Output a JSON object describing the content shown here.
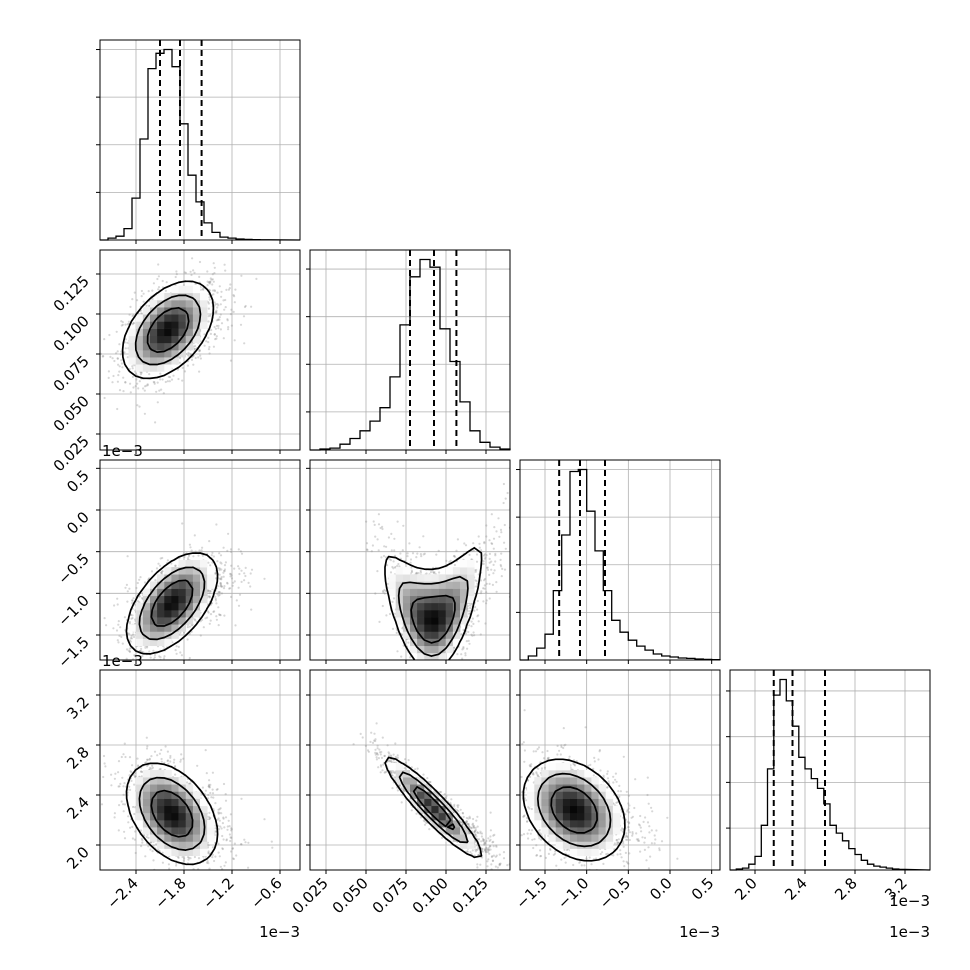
{
  "chart_data": {
    "type": "corner",
    "parameters": [
      {
        "id": "p0",
        "range": [
          -2.85,
          -0.35
        ],
        "ticks": [
          -2.4,
          -1.8,
          -1.2,
          -0.6
        ],
        "tick_labels": [
          "−2.4",
          "−1.8",
          "−1.2",
          "−0.6"
        ],
        "offset_label": "1e−3",
        "quantiles": [
          -2.1,
          -1.85,
          -1.58
        ],
        "hist_edges": [
          -2.85,
          -2.75,
          -2.65,
          -2.55,
          -2.45,
          -2.35,
          -2.25,
          -2.15,
          -2.05,
          -1.95,
          -1.85,
          -1.75,
          -1.65,
          -1.55,
          -1.45,
          -1.35,
          -1.25,
          -1.15,
          -1.05,
          -0.95,
          -0.85,
          -0.75
        ],
        "hist_counts": [
          0.0,
          0.01,
          0.02,
          0.06,
          0.22,
          0.53,
          0.9,
          0.98,
          1.0,
          0.91,
          0.61,
          0.34,
          0.2,
          0.09,
          0.04,
          0.015,
          0.01,
          0.005,
          0.003,
          0.002,
          0.001
        ],
        "hist_yticks": [
          0.25,
          0.5,
          0.75,
          1.0
        ]
      },
      {
        "id": "p1",
        "range": [
          0.015,
          0.14
        ],
        "ticks": [
          0.025,
          0.05,
          0.075,
          0.1,
          0.125
        ],
        "tick_labels": [
          "0.025",
          "0.050",
          "0.075",
          "0.100",
          "0.125"
        ],
        "offset_label": "",
        "quantiles": [
          0.0775,
          0.0925,
          0.1065
        ],
        "hist_edges": [
          0.015,
          0.02125,
          0.0275,
          0.03375,
          0.04,
          0.04625,
          0.0525,
          0.05875,
          0.065,
          0.07125,
          0.0775,
          0.08375,
          0.09,
          0.09625,
          0.1025,
          0.10875,
          0.115,
          0.12125,
          0.1275,
          0.13375,
          0.14
        ],
        "hist_counts": [
          0.0,
          0.005,
          0.01,
          0.03,
          0.06,
          0.1,
          0.15,
          0.22,
          0.38,
          0.65,
          0.9,
          0.99,
          0.95,
          0.63,
          0.46,
          0.25,
          0.1,
          0.04,
          0.015,
          0.005
        ],
        "hist_yticks": [
          0.2,
          0.45,
          0.7,
          0.95
        ]
      },
      {
        "id": "p2",
        "range": [
          -1.8,
          0.6
        ],
        "ticks": [
          -1.5,
          -1.0,
          -0.5,
          0.0,
          0.5
        ],
        "tick_labels": [
          "−1.5",
          "−1.0",
          "−0.5",
          "0.0",
          "0.5"
        ],
        "offset_label": "1e−3",
        "quantiles": [
          -1.33,
          -1.08,
          -0.78
        ],
        "hist_edges": [
          -1.8,
          -1.7,
          -1.6,
          -1.5,
          -1.4,
          -1.3,
          -1.2,
          -1.1,
          -1.0,
          -0.9,
          -0.8,
          -0.7,
          -0.6,
          -0.5,
          -0.4,
          -0.3,
          -0.2,
          -0.1,
          0.0,
          0.1,
          0.2,
          0.3,
          0.4,
          0.5,
          0.6
        ],
        "hist_counts": [
          0.0,
          0.02,
          0.06,
          0.13,
          0.35,
          0.63,
          0.95,
          0.96,
          0.75,
          0.55,
          0.35,
          0.2,
          0.14,
          0.1,
          0.07,
          0.05,
          0.03,
          0.02,
          0.015,
          0.01,
          0.008,
          0.005,
          0.003,
          0.002
        ],
        "hist_yticks": [
          0.25,
          0.5,
          0.75,
          1.0
        ]
      },
      {
        "id": "p3",
        "range": [
          1.8,
          3.4
        ],
        "ticks": [
          2.0,
          2.4,
          2.8,
          3.2
        ],
        "tick_labels": [
          "2.0",
          "2.4",
          "2.8",
          "3.2"
        ],
        "offset_label": "1e−3",
        "quantiles": [
          2.15,
          2.3,
          2.56
        ],
        "hist_edges": [
          1.8,
          1.85,
          1.9,
          1.95,
          2.0,
          2.05,
          2.1,
          2.15,
          2.2,
          2.25,
          2.3,
          2.35,
          2.4,
          2.45,
          2.5,
          2.55,
          2.6,
          2.65,
          2.7,
          2.75,
          2.8,
          2.85,
          2.9,
          2.95,
          3.0,
          3.05,
          3.1,
          3.15,
          3.2
        ],
        "hist_counts": [
          0.0,
          0.005,
          0.01,
          0.03,
          0.07,
          0.23,
          0.52,
          0.9,
          0.98,
          0.87,
          0.74,
          0.58,
          0.52,
          0.47,
          0.42,
          0.34,
          0.23,
          0.19,
          0.15,
          0.11,
          0.08,
          0.05,
          0.03,
          0.02,
          0.015,
          0.01,
          0.005,
          0.003
        ],
        "hist_yticks": [
          0.22,
          0.46,
          0.7,
          0.94
        ]
      }
    ],
    "pairs": [
      {
        "row": 1,
        "col": 0,
        "mode": [
          -2.0,
          0.09
        ],
        "spread": [
          0.28,
          0.015
        ],
        "corr": 0.45
      },
      {
        "row": 2,
        "col": 0,
        "mode": [
          -1.95,
          -1.12
        ],
        "spread": [
          0.28,
          0.3
        ],
        "corr": 0.55
      },
      {
        "row": 2,
        "col": 1,
        "mode": [
          0.092,
          -1.15
        ],
        "spread": [
          0.015,
          0.3
        ],
        "corr": 0.1,
        "banana": 1
      },
      {
        "row": 3,
        "col": 0,
        "mode": [
          -1.95,
          2.25
        ],
        "spread": [
          0.28,
          0.2
        ],
        "corr": -0.4
      },
      {
        "row": 3,
        "col": 1,
        "mode": [
          0.092,
          2.3
        ],
        "spread": [
          0.015,
          0.2
        ],
        "corr": -0.93
      },
      {
        "row": 3,
        "col": 2,
        "mode": [
          -1.15,
          2.28
        ],
        "spread": [
          0.3,
          0.2
        ],
        "corr": -0.3
      }
    ],
    "grid": true,
    "colors": {
      "line": "#000000",
      "grid": "#b0b0b0",
      "points": "#8c8c8c"
    }
  }
}
